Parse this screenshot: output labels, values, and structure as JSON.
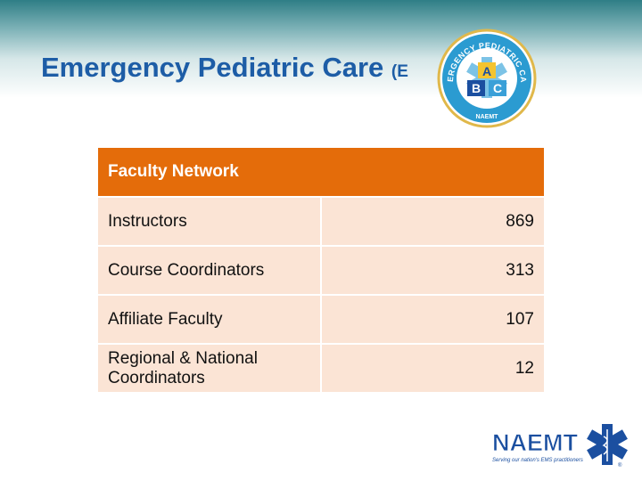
{
  "slide": {
    "title": "Emergency Pediatric Care",
    "title_tag": "(E",
    "colors": {
      "title": "#1d5da6",
      "header": "#e46c0a",
      "row": "#fbe4d5",
      "logo_blue": "#1b4fa0"
    }
  },
  "epc_logo": {
    "ring_text": "EMERGENCY PEDIATRIC CARE",
    "bottom_text": "NAEMT",
    "blocks": [
      "A",
      "B",
      "C"
    ]
  },
  "table": {
    "header": "Faculty Network",
    "rows": [
      {
        "label": "Instructors",
        "value": "869"
      },
      {
        "label": "Course Coordinators",
        "value": "313"
      },
      {
        "label": "Affiliate Faculty",
        "value": "107"
      },
      {
        "label": "Regional & National Coordinators",
        "value": "12"
      }
    ]
  },
  "naemt_logo": {
    "name": "NAEMT",
    "tagline": "Serving our nation's EMS practitioners",
    "mark": "®"
  }
}
